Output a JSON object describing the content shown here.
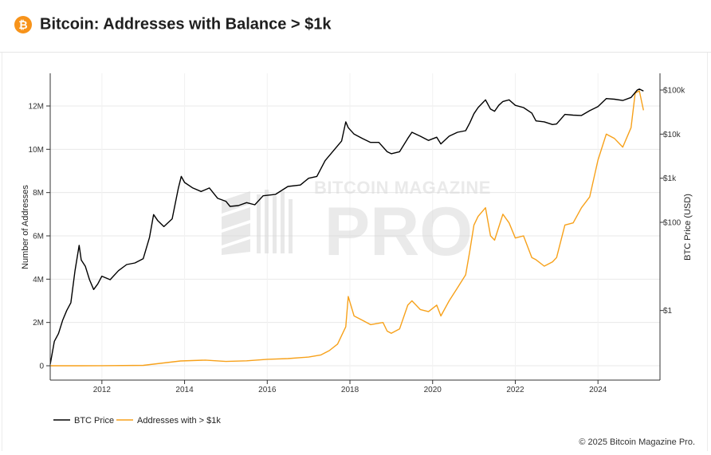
{
  "header": {
    "title": "Bitcoin: Addresses with Balance > $1k",
    "logo_glyph": "₿",
    "logo_icon": "bitcoin-logo-icon"
  },
  "watermark": {
    "line1": "BITCOIN MAGAZINE",
    "line2": "PRO"
  },
  "footer": {
    "copyright": "© 2025 Bitcoin Magazine Pro."
  },
  "colors": {
    "btc_price": "#000000",
    "addresses": "#f7a11a",
    "grid": "#e8e8e8",
    "brand": "#f7931a"
  },
  "chart_data": {
    "type": "line",
    "xlim": [
      2010.75,
      2025.5
    ],
    "x_ticks": [
      2012,
      2014,
      2016,
      2018,
      2020,
      2022,
      2024
    ],
    "x_tick_labels": [
      "2012",
      "2014",
      "2016",
      "2018",
      "2020",
      "2022",
      "2024"
    ],
    "y_left": {
      "label": "Number of Addresses",
      "ylim": [
        0,
        13000000
      ],
      "ticks": [
        0,
        2000000,
        4000000,
        6000000,
        8000000,
        10000000,
        12000000
      ],
      "tick_labels": [
        "0",
        "2M",
        "4M",
        "6M",
        "8M",
        "10M",
        "12M"
      ]
    },
    "y_right": {
      "label": "BTC Price (USD)",
      "scale": "log",
      "ylim": [
        0.05,
        150000
      ],
      "ticks": [
        1,
        100,
        1000,
        10000,
        100000
      ],
      "tick_labels": [
        "$1",
        "$100",
        "$1k",
        "$10k",
        "$100k"
      ]
    },
    "legend": {
      "placement": "bottom-left"
    },
    "series": [
      {
        "name": "BTC Price",
        "axis": "right",
        "color": "#000000",
        "x": [
          2010.75,
          2010.85,
          2010.95,
          2011.05,
          2011.15,
          2011.25,
          2011.35,
          2011.45,
          2011.5,
          2011.6,
          2011.7,
          2011.8,
          2011.9,
          2012.0,
          2012.2,
          2012.4,
          2012.6,
          2012.8,
          2013.0,
          2013.15,
          2013.25,
          2013.35,
          2013.5,
          2013.7,
          2013.85,
          2013.92,
          2014.0,
          2014.2,
          2014.4,
          2014.6,
          2014.8,
          2015.0,
          2015.1,
          2015.3,
          2015.5,
          2015.7,
          2015.9,
          2016.2,
          2016.5,
          2016.8,
          2017.0,
          2017.2,
          2017.4,
          2017.6,
          2017.8,
          2017.9,
          2017.96,
          2018.1,
          2018.3,
          2018.5,
          2018.7,
          2018.9,
          2019.0,
          2019.2,
          2019.4,
          2019.5,
          2019.7,
          2019.9,
          2020.1,
          2020.2,
          2020.4,
          2020.6,
          2020.8,
          2020.9,
          2021.0,
          2021.1,
          2021.28,
          2021.4,
          2021.5,
          2021.6,
          2021.7,
          2021.85,
          2022.0,
          2022.2,
          2022.4,
          2022.5,
          2022.7,
          2022.9,
          2023.0,
          2023.2,
          2023.4,
          2023.6,
          2023.8,
          2024.0,
          2024.2,
          2024.4,
          2024.6,
          2024.8,
          2024.95,
          2025.0,
          2025.1
        ],
        "y": [
          0.06,
          0.2,
          0.3,
          0.6,
          1.0,
          1.5,
          8,
          30,
          14,
          10,
          5,
          3,
          4,
          6,
          5,
          8,
          11,
          12,
          15,
          45,
          150,
          110,
          80,
          120,
          600,
          1100,
          800,
          600,
          500,
          600,
          350,
          300,
          230,
          240,
          280,
          250,
          400,
          430,
          650,
          700,
          1000,
          1100,
          2500,
          4200,
          7000,
          19000,
          14000,
          10000,
          8000,
          6500,
          6500,
          4000,
          3600,
          4000,
          8000,
          11000,
          9000,
          7200,
          8500,
          6000,
          9000,
          11000,
          12000,
          18000,
          29000,
          40000,
          60000,
          37000,
          33000,
          45000,
          55000,
          60000,
          45000,
          40000,
          30000,
          20000,
          19000,
          16500,
          17000,
          28000,
          27000,
          26500,
          34000,
          42000,
          64000,
          62000,
          58000,
          68000,
          100000,
          105000,
          95000
        ]
      },
      {
        "name": "Addresses with > $1k",
        "axis": "left",
        "color": "#f7a11a",
        "x": [
          2010.75,
          2011.5,
          2012.0,
          2013.0,
          2013.9,
          2014.5,
          2015.0,
          2015.5,
          2016.0,
          2016.5,
          2017.0,
          2017.3,
          2017.5,
          2017.7,
          2017.9,
          2017.96,
          2018.1,
          2018.3,
          2018.5,
          2018.8,
          2018.9,
          2019.0,
          2019.2,
          2019.4,
          2019.5,
          2019.7,
          2019.9,
          2020.1,
          2020.2,
          2020.4,
          2020.6,
          2020.8,
          2020.9,
          2021.0,
          2021.1,
          2021.28,
          2021.4,
          2021.5,
          2021.7,
          2021.85,
          2022.0,
          2022.2,
          2022.4,
          2022.5,
          2022.7,
          2022.9,
          2023.0,
          2023.2,
          2023.4,
          2023.6,
          2023.8,
          2024.0,
          2024.2,
          2024.4,
          2024.6,
          2024.8,
          2024.9,
          2025.0,
          2025.1
        ],
        "y": [
          0,
          0,
          5000,
          20000,
          220000,
          260000,
          200000,
          230000,
          300000,
          330000,
          400000,
          500000,
          700000,
          1000000,
          1800000,
          3200000,
          2300000,
          2100000,
          1900000,
          2000000,
          1600000,
          1500000,
          1700000,
          2800000,
          3000000,
          2600000,
          2500000,
          2800000,
          2300000,
          3000000,
          3600000,
          4200000,
          5300000,
          6500000,
          6900000,
          7300000,
          6000000,
          5800000,
          7000000,
          6600000,
          5900000,
          6000000,
          5000000,
          4900000,
          4600000,
          4800000,
          5000000,
          6500000,
          6600000,
          7300000,
          7800000,
          9500000,
          10700000,
          10500000,
          10100000,
          11000000,
          12600000,
          12700000,
          11800000
        ]
      }
    ]
  }
}
